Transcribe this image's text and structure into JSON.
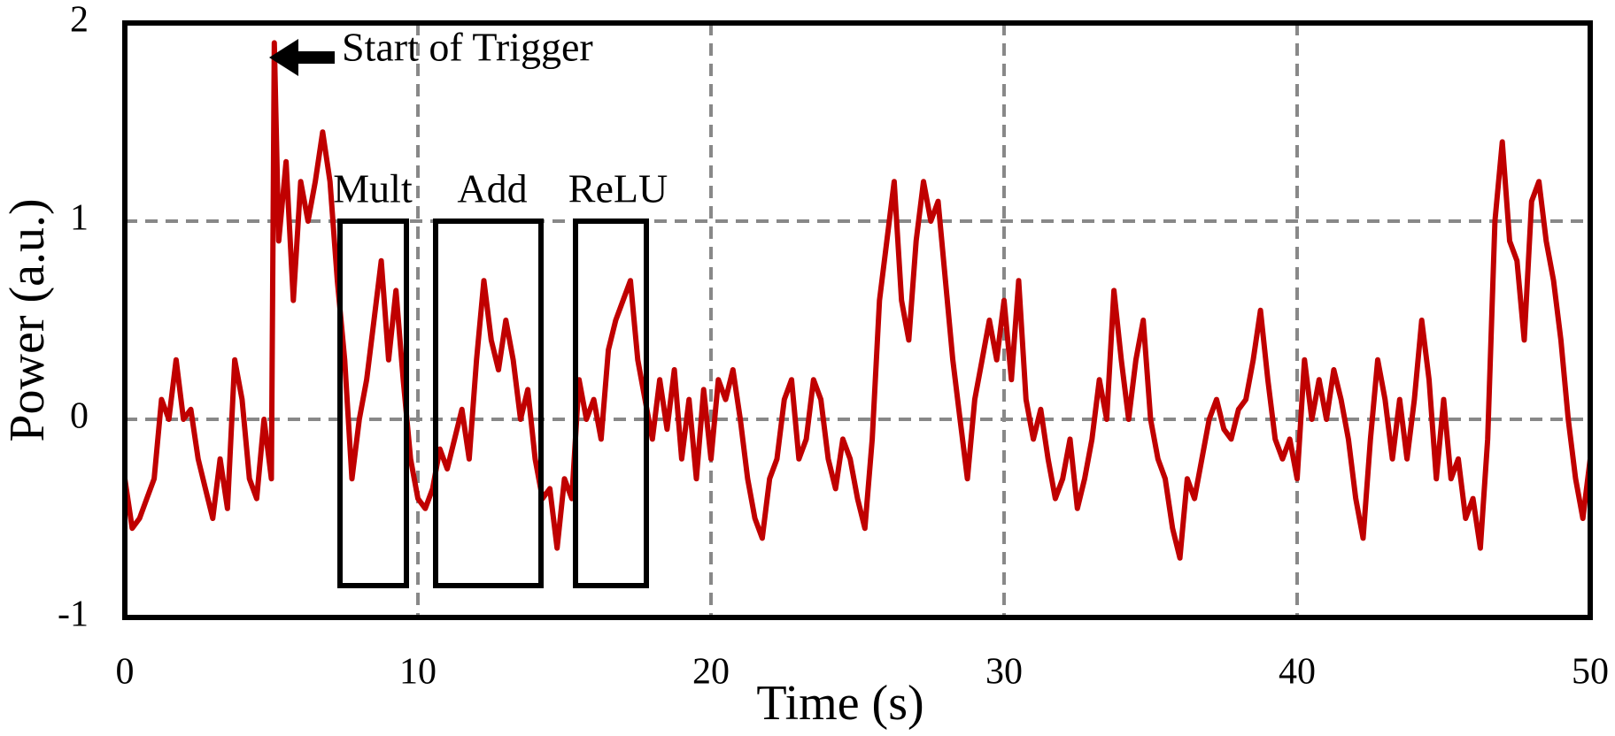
{
  "chart_data": {
    "type": "line",
    "xlabel": "Time (s)",
    "ylabel": "Power (a.u.)",
    "annotations": [
      "Start of Trigger",
      "Mult",
      "Add",
      "ReLU"
    ],
    "xlim": [
      0,
      50
    ],
    "xticks": [
      0,
      10,
      20,
      30,
      40,
      50
    ],
    "ylim": [
      -1,
      2
    ],
    "yticks": [
      -1,
      0,
      1,
      2
    ],
    "grid": true,
    "series": [
      {
        "color": "#c00000",
        "x": [
          0,
          0.25,
          0.5,
          0.75,
          1,
          1.25,
          1.5,
          1.75,
          2,
          2.25,
          2.5,
          2.75,
          3,
          3.25,
          3.5,
          3.75,
          4,
          4.25,
          4.5,
          4.75,
          5,
          5.1,
          5.25,
          5.5,
          5.75,
          6,
          6.25,
          6.5,
          6.75,
          7,
          7.25,
          7.5,
          7.75,
          8,
          8.25,
          8.5,
          8.75,
          9,
          9.25,
          9.5,
          9.75,
          10,
          10.25,
          10.5,
          10.75,
          11,
          11.25,
          11.5,
          11.75,
          12,
          12.25,
          12.5,
          12.75,
          13,
          13.25,
          13.5,
          13.75,
          14,
          14.25,
          14.5,
          14.75,
          15,
          15.25,
          15.5,
          15.75,
          16,
          16.25,
          16.5,
          16.75,
          17,
          17.25,
          17.5,
          17.75,
          18,
          18.25,
          18.5,
          18.75,
          19,
          19.25,
          19.5,
          19.75,
          20,
          20.25,
          20.5,
          20.75,
          21,
          21.25,
          21.5,
          21.75,
          22,
          22.25,
          22.5,
          22.75,
          23,
          23.25,
          23.5,
          23.75,
          24,
          24.25,
          24.5,
          24.75,
          25,
          25.25,
          25.5,
          25.75,
          26,
          26.25,
          26.5,
          26.75,
          27,
          27.25,
          27.5,
          27.75,
          28,
          28.25,
          28.5,
          28.75,
          29,
          29.25,
          29.5,
          29.75,
          30,
          30.25,
          30.5,
          30.75,
          31,
          31.25,
          31.5,
          31.75,
          32,
          32.25,
          32.5,
          32.75,
          33,
          33.25,
          33.5,
          33.75,
          34,
          34.25,
          34.5,
          34.75,
          35,
          35.25,
          35.5,
          35.75,
          36,
          36.25,
          36.5,
          36.75,
          37,
          37.25,
          37.5,
          37.75,
          38,
          38.25,
          38.5,
          38.75,
          39,
          39.25,
          39.5,
          39.75,
          40,
          40.25,
          40.5,
          40.75,
          41,
          41.25,
          41.5,
          41.75,
          42,
          42.25,
          42.5,
          42.75,
          43,
          43.25,
          43.5,
          43.75,
          44,
          44.25,
          44.5,
          44.75,
          45,
          45.25,
          45.5,
          45.75,
          46,
          46.25,
          46.5,
          46.75,
          47,
          47.25,
          47.5,
          47.75,
          48,
          48.25,
          48.5,
          48.75,
          49,
          49.25,
          49.5,
          49.75,
          50
        ],
        "values": [
          -0.3,
          -0.55,
          -0.5,
          -0.4,
          -0.3,
          0.1,
          0.0,
          0.3,
          0.0,
          0.05,
          -0.2,
          -0.35,
          -0.5,
          -0.2,
          -0.45,
          0.3,
          0.1,
          -0.3,
          -0.4,
          0.0,
          -0.3,
          1.9,
          0.9,
          1.3,
          0.6,
          1.2,
          1.0,
          1.2,
          1.45,
          1.2,
          0.7,
          0.3,
          -0.3,
          0.0,
          0.2,
          0.5,
          0.8,
          0.3,
          0.65,
          0.2,
          -0.2,
          -0.4,
          -0.45,
          -0.35,
          -0.15,
          -0.25,
          -0.1,
          0.05,
          -0.2,
          0.3,
          0.7,
          0.4,
          0.25,
          0.5,
          0.3,
          0.0,
          0.15,
          -0.2,
          -0.4,
          -0.35,
          -0.65,
          -0.3,
          -0.4,
          0.2,
          0.0,
          0.1,
          -0.1,
          0.35,
          0.5,
          0.6,
          0.7,
          0.3,
          0.1,
          -0.1,
          0.2,
          -0.05,
          0.25,
          -0.2,
          0.1,
          -0.3,
          0.15,
          -0.2,
          0.2,
          0.1,
          0.25,
          0.0,
          -0.3,
          -0.5,
          -0.6,
          -0.3,
          -0.2,
          0.1,
          0.2,
          -0.2,
          -0.1,
          0.2,
          0.1,
          -0.2,
          -0.35,
          -0.1,
          -0.2,
          -0.4,
          -0.55,
          -0.1,
          0.6,
          0.9,
          1.2,
          0.6,
          0.4,
          0.9,
          1.2,
          1.0,
          1.1,
          0.7,
          0.3,
          0.0,
          -0.3,
          0.1,
          0.3,
          0.5,
          0.3,
          0.6,
          0.2,
          0.7,
          0.1,
          -0.1,
          0.05,
          -0.2,
          -0.4,
          -0.3,
          -0.1,
          -0.45,
          -0.3,
          -0.1,
          0.2,
          0.0,
          0.65,
          0.3,
          0.0,
          0.3,
          0.5,
          0.0,
          -0.2,
          -0.3,
          -0.55,
          -0.7,
          -0.3,
          -0.4,
          -0.2,
          0.0,
          0.1,
          -0.05,
          -0.1,
          0.05,
          0.1,
          0.3,
          0.55,
          0.2,
          -0.1,
          -0.2,
          -0.1,
          -0.3,
          0.3,
          0.0,
          0.2,
          0.0,
          0.25,
          0.1,
          -0.1,
          -0.4,
          -0.6,
          -0.1,
          0.3,
          0.1,
          -0.2,
          0.1,
          -0.2,
          0.1,
          0.5,
          0.2,
          -0.3,
          0.1,
          -0.3,
          -0.2,
          -0.5,
          -0.4,
          -0.65,
          -0.1,
          1.0,
          1.4,
          0.9,
          0.8,
          0.4,
          1.1,
          1.2,
          0.9,
          0.7,
          0.4,
          0.0,
          -0.3,
          -0.5,
          -0.2
        ]
      }
    ]
  }
}
